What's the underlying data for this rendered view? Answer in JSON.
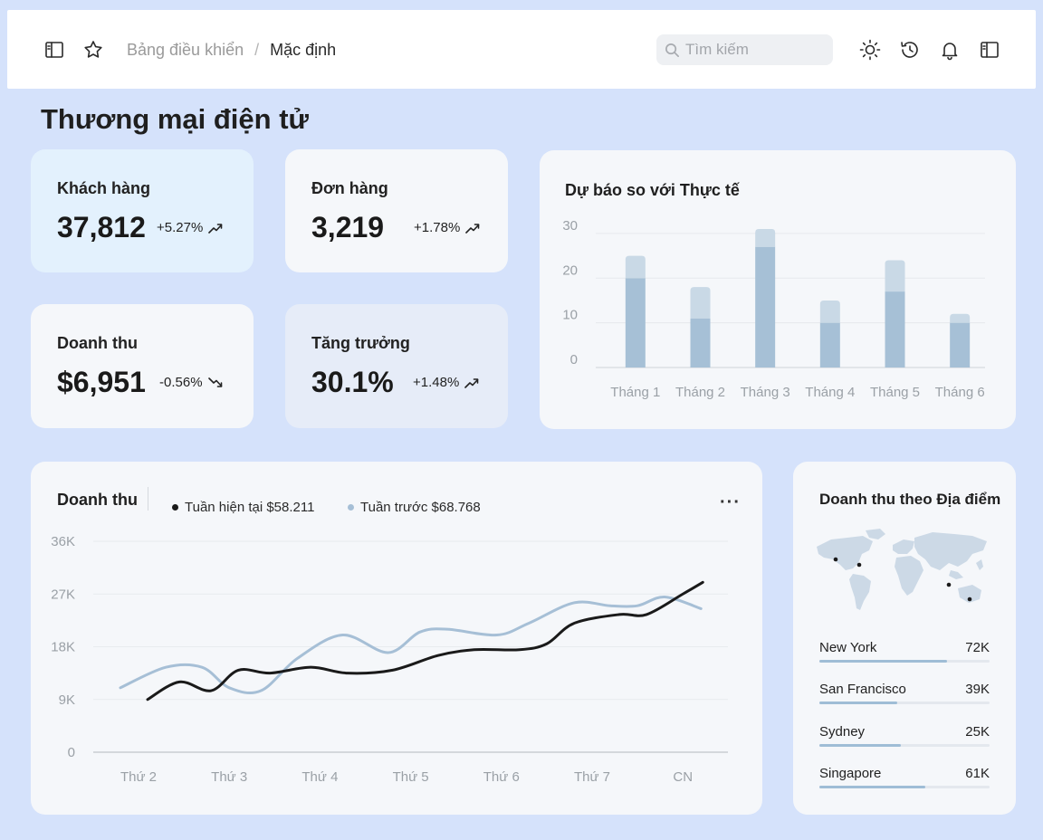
{
  "topbar": {
    "breadcrumb_root": "Bảng điều khiển",
    "breadcrumb_separator": "/",
    "breadcrumb_current": "Mặc định",
    "search_placeholder": "Tìm kiếm",
    "icons": [
      "sidebar-toggle-icon",
      "star-icon",
      "search-icon",
      "sun-icon",
      "history-icon",
      "bell-icon",
      "sidebar-right-icon"
    ]
  },
  "page_title": "Thương mại điện tử",
  "stats": [
    {
      "label": "Khách hàng",
      "value": "37,812",
      "change": "+5.27%",
      "trend": "up"
    },
    {
      "label": "Đơn hàng",
      "value": "3,219",
      "change": "+1.78%",
      "trend": "up"
    },
    {
      "label": "Doanh thu",
      "value": "$6,951",
      "change": "-0.56%",
      "trend": "down"
    },
    {
      "label": "Tăng trưởng",
      "value": "30.1%",
      "change": "+1.48%",
      "trend": "up"
    }
  ],
  "colors": {
    "background": "#d5e2fb",
    "card": "#f5f7fa",
    "card_highlight_blue": "#e3f1fd",
    "card_highlight_gray": "#e6ecf8",
    "bar_actual": "#a6c0d6",
    "bar_forecast": "#c9d9e6",
    "line_current": "#1a1a1a",
    "line_previous": "#a6bfd6"
  },
  "chart_data": [
    {
      "type": "bar",
      "title": "Dự báo so với Thực tế",
      "categories": [
        "Tháng 1",
        "Tháng 2",
        "Tháng 3",
        "Tháng 4",
        "Tháng 5",
        "Tháng 6"
      ],
      "series": [
        {
          "values": [
            20,
            11,
            27,
            10,
            17,
            10
          ]
        },
        {
          "values": [
            5,
            7,
            4,
            5,
            7,
            2
          ]
        }
      ],
      "stacked": true,
      "yticks": [
        0,
        10,
        20,
        30
      ],
      "ylim": [
        0,
        32
      ],
      "grid": true
    },
    {
      "type": "line",
      "title": "Doanh thu",
      "categories": [
        "Thứ 2",
        "Thứ 3",
        "Thứ 4",
        "Thứ 5",
        "Thứ 6",
        "Thứ 7",
        "CN"
      ],
      "series": [
        {
          "name": "Tuần hiện tại $58.211",
          "x": [
            0.1,
            0.45,
            0.8,
            1.1,
            1.45,
            1.9,
            2.3,
            2.8,
            3.3,
            3.7,
            4.2,
            4.5,
            4.8,
            5.3,
            5.6,
            6.0,
            6.22
          ],
          "values": [
            9,
            12,
            10.5,
            14,
            13.5,
            14.5,
            13.5,
            14,
            16.5,
            17.5,
            17.5,
            18.5,
            22,
            23.5,
            23.5,
            27,
            29
          ]
        },
        {
          "name": "Tuần trước $68.768",
          "x": [
            -0.2,
            0.3,
            0.7,
            1.0,
            1.35,
            1.75,
            2.25,
            2.75,
            3.1,
            3.4,
            3.95,
            4.3,
            4.8,
            5.2,
            5.5,
            5.8,
            6.2
          ],
          "values": [
            11,
            14.5,
            14.5,
            11,
            10.5,
            16,
            20,
            17,
            20.5,
            21,
            20,
            22,
            25.5,
            25,
            25,
            26.5,
            24.5
          ]
        }
      ],
      "yticks": [
        "0",
        "9K",
        "18K",
        "27K",
        "36K"
      ],
      "ylim": [
        0,
        36
      ],
      "grid": true,
      "legend": "top"
    }
  ],
  "location": {
    "title": "Doanh thu theo Địa điểm",
    "items": [
      {
        "name": "New York",
        "amount": "72K",
        "share": 0.75
      },
      {
        "name": "San Francisco",
        "amount": "39K",
        "share": 0.46
      },
      {
        "name": "Sydney",
        "amount": "25K",
        "share": 0.48
      },
      {
        "name": "Singapore",
        "amount": "61K",
        "share": 0.62
      }
    ]
  }
}
